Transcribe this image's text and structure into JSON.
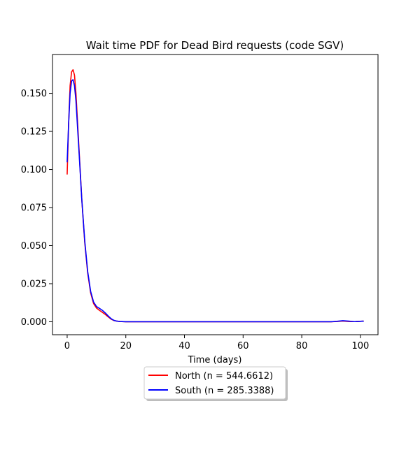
{
  "chart_data": {
    "type": "line",
    "title": "Wait time PDF for Dead Bird  requests (code SGV)",
    "xlabel": "Time (days)",
    "ylabel": "",
    "xlim": [
      -5,
      106
    ],
    "ylim": [
      -0.0085,
      0.1755
    ],
    "x_ticks": [
      0,
      20,
      40,
      60,
      80,
      100
    ],
    "y_ticks": [
      0.0,
      0.025,
      0.05,
      0.075,
      0.1,
      0.125,
      0.15
    ],
    "x_tick_labels": [
      "0",
      "20",
      "40",
      "60",
      "80",
      "100"
    ],
    "y_tick_labels": [
      "0.000",
      "0.025",
      "0.050",
      "0.075",
      "0.100",
      "0.125",
      "0.150"
    ],
    "grid": false,
    "legend_placement": "below-center",
    "series": [
      {
        "name": "North (n = 544.6612)",
        "color": "#ff0000",
        "x": [
          0,
          0.5,
          1,
          1.5,
          2,
          2.5,
          3,
          4,
          5,
          6,
          7,
          8,
          9,
          10,
          11,
          12,
          13,
          14,
          15,
          16,
          17,
          18,
          20,
          25,
          30,
          40,
          50,
          60,
          70,
          80,
          90,
          92,
          94,
          96,
          98,
          100,
          101
        ],
        "y": [
          0.097,
          0.13,
          0.155,
          0.164,
          0.1655,
          0.162,
          0.15,
          0.115,
          0.08,
          0.052,
          0.032,
          0.019,
          0.012,
          0.009,
          0.0075,
          0.0062,
          0.0048,
          0.0032,
          0.0017,
          0.0008,
          0.0004,
          0.0002,
          0.0,
          0.0,
          0.0,
          0.0,
          0.0,
          0.0,
          0.0,
          0.0,
          0.0,
          0.0002,
          0.0005,
          0.0002,
          0.0001,
          0.0003,
          0.0004
        ]
      },
      {
        "name": "South (n = 285.3388)",
        "color": "#0000ff",
        "x": [
          0,
          0.5,
          1,
          1.5,
          2,
          2.5,
          3,
          4,
          5,
          6,
          7,
          8,
          9,
          10,
          11,
          12,
          13,
          14,
          15,
          16,
          17,
          18,
          20,
          25,
          30,
          40,
          50,
          60,
          70,
          80,
          90,
          92,
          94,
          96,
          98,
          100,
          101
        ],
        "y": [
          0.105,
          0.13,
          0.15,
          0.158,
          0.159,
          0.155,
          0.145,
          0.113,
          0.08,
          0.053,
          0.033,
          0.02,
          0.013,
          0.01,
          0.0088,
          0.0075,
          0.0058,
          0.0038,
          0.002,
          0.0009,
          0.0004,
          0.0002,
          0.0,
          0.0,
          0.0,
          0.0,
          0.0,
          0.0,
          0.0,
          0.0,
          0.0,
          0.0003,
          0.0007,
          0.0004,
          0.0001,
          0.0003,
          0.0004
        ]
      }
    ]
  }
}
